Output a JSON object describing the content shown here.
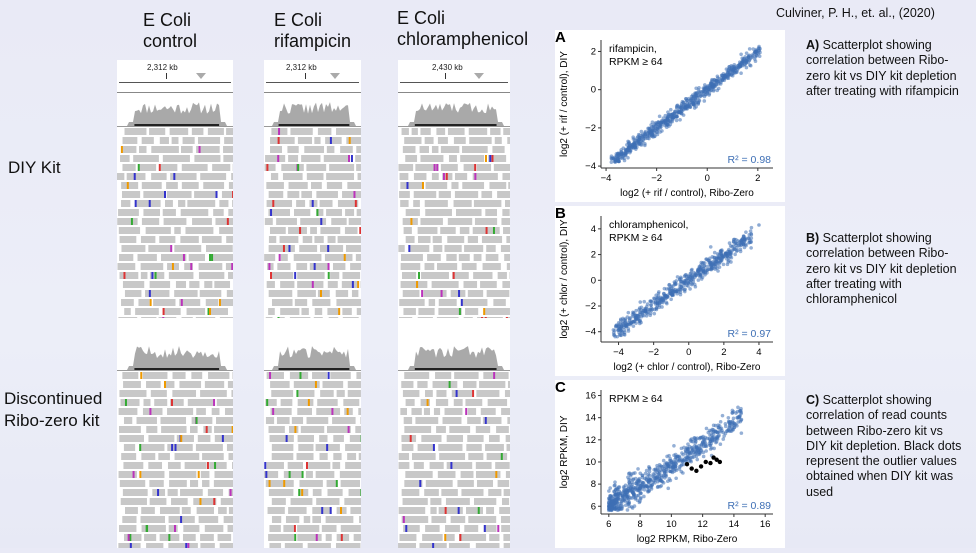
{
  "citation": "Culviner, P. H., et. al., (2020)",
  "columns": [
    {
      "line1": "E Coli",
      "line2": "control",
      "locus": "2,312 kb"
    },
    {
      "line1": "E Coli",
      "line2": "rifampicin",
      "locus": "2,312 kb"
    },
    {
      "line1": "E Coli",
      "line2": "chloramphenicol",
      "locus": "2,430 kb"
    }
  ],
  "rows": {
    "diy": "DIY Kit",
    "ribo_line1": "Discontinued",
    "ribo_line2": "Ribo-zero kit"
  },
  "captions": {
    "a_bold": "A)",
    "a_text": " Scatterplot showing correlation between Ribo-zero kit vs DIY  kit depletion after treating with rifampicin",
    "b_bold": "B)",
    "b_text": " Scatterplot showing correlation between Ribo-zero kit vs DIY kit depletion after treating with chloramphenicol",
    "c_bold": "C)",
    "c_text": " Scatterplot showing correlation of read counts between Ribo-zero kit vs DIY kit depletion. Black dots represent the outlier values obtained when DIY kit was used"
  },
  "colors": {
    "point": "#3e6fb5",
    "outlier": "#000000",
    "r2": "#3e6fb5",
    "read": "#c8c8c8",
    "coverage": "#a9a9a9"
  },
  "chart_data": [
    {
      "id": "A",
      "type": "scatter",
      "panel_label": "A",
      "annotation_line1": "rifampicin,",
      "annotation_line2": "RPKM ≥ 64",
      "xlabel": "log2 (+ rif / control), Ribo-Zero",
      "ylabel": "log2 (+ rif / control), DIY",
      "xlim": [
        -4.2,
        2.6
      ],
      "ylim": [
        -4.1,
        2.6
      ],
      "xticks": [
        -4,
        -2,
        0,
        2
      ],
      "yticks": [
        -4,
        -2,
        0,
        2
      ],
      "r2": "R² = 0.98",
      "trend": {
        "slope": 1.0,
        "intercept": 0.0,
        "spread": 0.18,
        "x_range": [
          -3.8,
          2.1
        ],
        "n": 650
      },
      "outliers": []
    },
    {
      "id": "B",
      "type": "scatter",
      "panel_label": "B",
      "annotation_line1": "chloramphenicol,",
      "annotation_line2": "RPKM ≥ 64",
      "xlabel": "log2 (+ chlor / control), Ribo-Zero",
      "ylabel": "log2 (+ chlor / control), DIY",
      "xlim": [
        -5.0,
        4.8
      ],
      "ylim": [
        -4.8,
        5.0
      ],
      "xticks": [
        -4,
        -2,
        0,
        2,
        4
      ],
      "yticks": [
        -4,
        -2,
        0,
        2,
        4
      ],
      "r2": "R² = 0.97",
      "trend": {
        "slope": 0.95,
        "intercept": 0.0,
        "spread": 0.35,
        "x_range": [
          -4.3,
          3.6
        ],
        "n": 550
      },
      "outliers": [
        [
          4.0,
          4.3
        ]
      ]
    },
    {
      "id": "C",
      "type": "scatter",
      "panel_label": "C",
      "annotation_line1": "RPKM ≥ 64",
      "annotation_line2": "",
      "xlabel": "log2 RPKM, Ribo-Zero",
      "ylabel": "log2 RPKM, DIY",
      "xlim": [
        5.5,
        16.5
      ],
      "ylim": [
        5.3,
        16.5
      ],
      "xticks": [
        6,
        8,
        10,
        12,
        14,
        16
      ],
      "yticks": [
        6,
        8,
        10,
        12,
        14,
        16
      ],
      "r2": "R² = 0.89",
      "trend": {
        "slope": 1.0,
        "intercept": -0.4,
        "spread": 0.55,
        "x_range": [
          6.0,
          14.5
        ],
        "n": 750
      },
      "outliers": [
        [
          11.0,
          9.8
        ],
        [
          11.3,
          9.4
        ],
        [
          11.6,
          9.2
        ],
        [
          11.9,
          9.6
        ],
        [
          12.2,
          10.0
        ],
        [
          12.5,
          9.9
        ],
        [
          12.7,
          10.4
        ],
        [
          12.9,
          10.2
        ],
        [
          13.1,
          10.0
        ]
      ]
    }
  ]
}
